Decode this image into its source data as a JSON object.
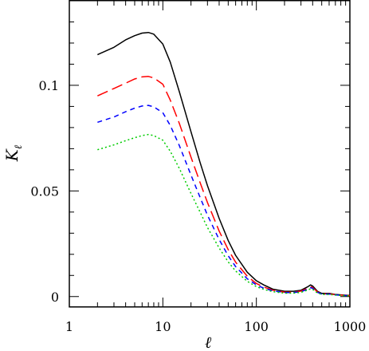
{
  "chart_data": {
    "type": "line",
    "title": "",
    "xlabel": "ℓ",
    "ylabel": "K",
    "ylabel_subscript": "ℓ",
    "xscale": "log",
    "xlim": [
      1,
      1000
    ],
    "ylim": [
      -0.005,
      0.14
    ],
    "x_tick_labels": [
      "1",
      "10",
      "100",
      "1000"
    ],
    "x_ticks": [
      1,
      10,
      100,
      1000
    ],
    "y_tick_labels": [
      "0",
      "0.05",
      "0.1"
    ],
    "y_ticks": [
      0,
      0.05,
      0.1
    ],
    "grid": false,
    "x": [
      2,
      3,
      4,
      5,
      6,
      7,
      8,
      10,
      12,
      15,
      20,
      25,
      30,
      40,
      50,
      60,
      80,
      100,
      120,
      150,
      200,
      250,
      300,
      350,
      380,
      400,
      450,
      500,
      600,
      700,
      800,
      1000
    ],
    "series": [
      {
        "color": "#000000",
        "dash": "solid",
        "values": [
          0.1145,
          0.118,
          0.1215,
          0.1235,
          0.1247,
          0.125,
          0.1242,
          0.1195,
          0.111,
          0.097,
          0.078,
          0.0635,
          0.0525,
          0.037,
          0.0265,
          0.0195,
          0.0115,
          0.0075,
          0.0055,
          0.0035,
          0.0025,
          0.0025,
          0.003,
          0.0045,
          0.0055,
          0.005,
          0.0025,
          0.0015,
          0.0015,
          0.001,
          0.0008,
          0.0005
        ]
      },
      {
        "color": "#ff0000",
        "dash": "long-dash",
        "values": [
          0.095,
          0.0985,
          0.101,
          0.103,
          0.104,
          0.1042,
          0.1035,
          0.1005,
          0.093,
          0.082,
          0.066,
          0.054,
          0.0445,
          0.031,
          0.0222,
          0.0163,
          0.0096,
          0.0062,
          0.0045,
          0.003,
          0.0021,
          0.0021,
          0.0026,
          0.0038,
          0.0047,
          0.0043,
          0.0022,
          0.0013,
          0.0013,
          0.0009,
          0.0007,
          0.0004
        ]
      },
      {
        "color": "#0000ff",
        "dash": "short-dash",
        "values": [
          0.0825,
          0.085,
          0.0875,
          0.0892,
          0.0902,
          0.0905,
          0.0898,
          0.087,
          0.081,
          0.0715,
          0.0575,
          0.047,
          0.0385,
          0.027,
          0.0193,
          0.0142,
          0.0084,
          0.0055,
          0.004,
          0.0027,
          0.0019,
          0.0019,
          0.0023,
          0.0034,
          0.0042,
          0.0039,
          0.002,
          0.0012,
          0.0012,
          0.0008,
          0.0006,
          0.0004
        ]
      },
      {
        "color": "#00cc00",
        "dash": "dotted",
        "values": [
          0.0695,
          0.0718,
          0.0738,
          0.0752,
          0.0762,
          0.0767,
          0.0762,
          0.074,
          0.0688,
          0.0607,
          0.0488,
          0.04,
          0.0327,
          0.023,
          0.0164,
          0.0121,
          0.0072,
          0.0047,
          0.0034,
          0.0023,
          0.0016,
          0.0016,
          0.002,
          0.003,
          0.0037,
          0.0034,
          0.0017,
          0.001,
          0.001,
          0.0007,
          0.0005,
          0.0003
        ]
      }
    ]
  }
}
